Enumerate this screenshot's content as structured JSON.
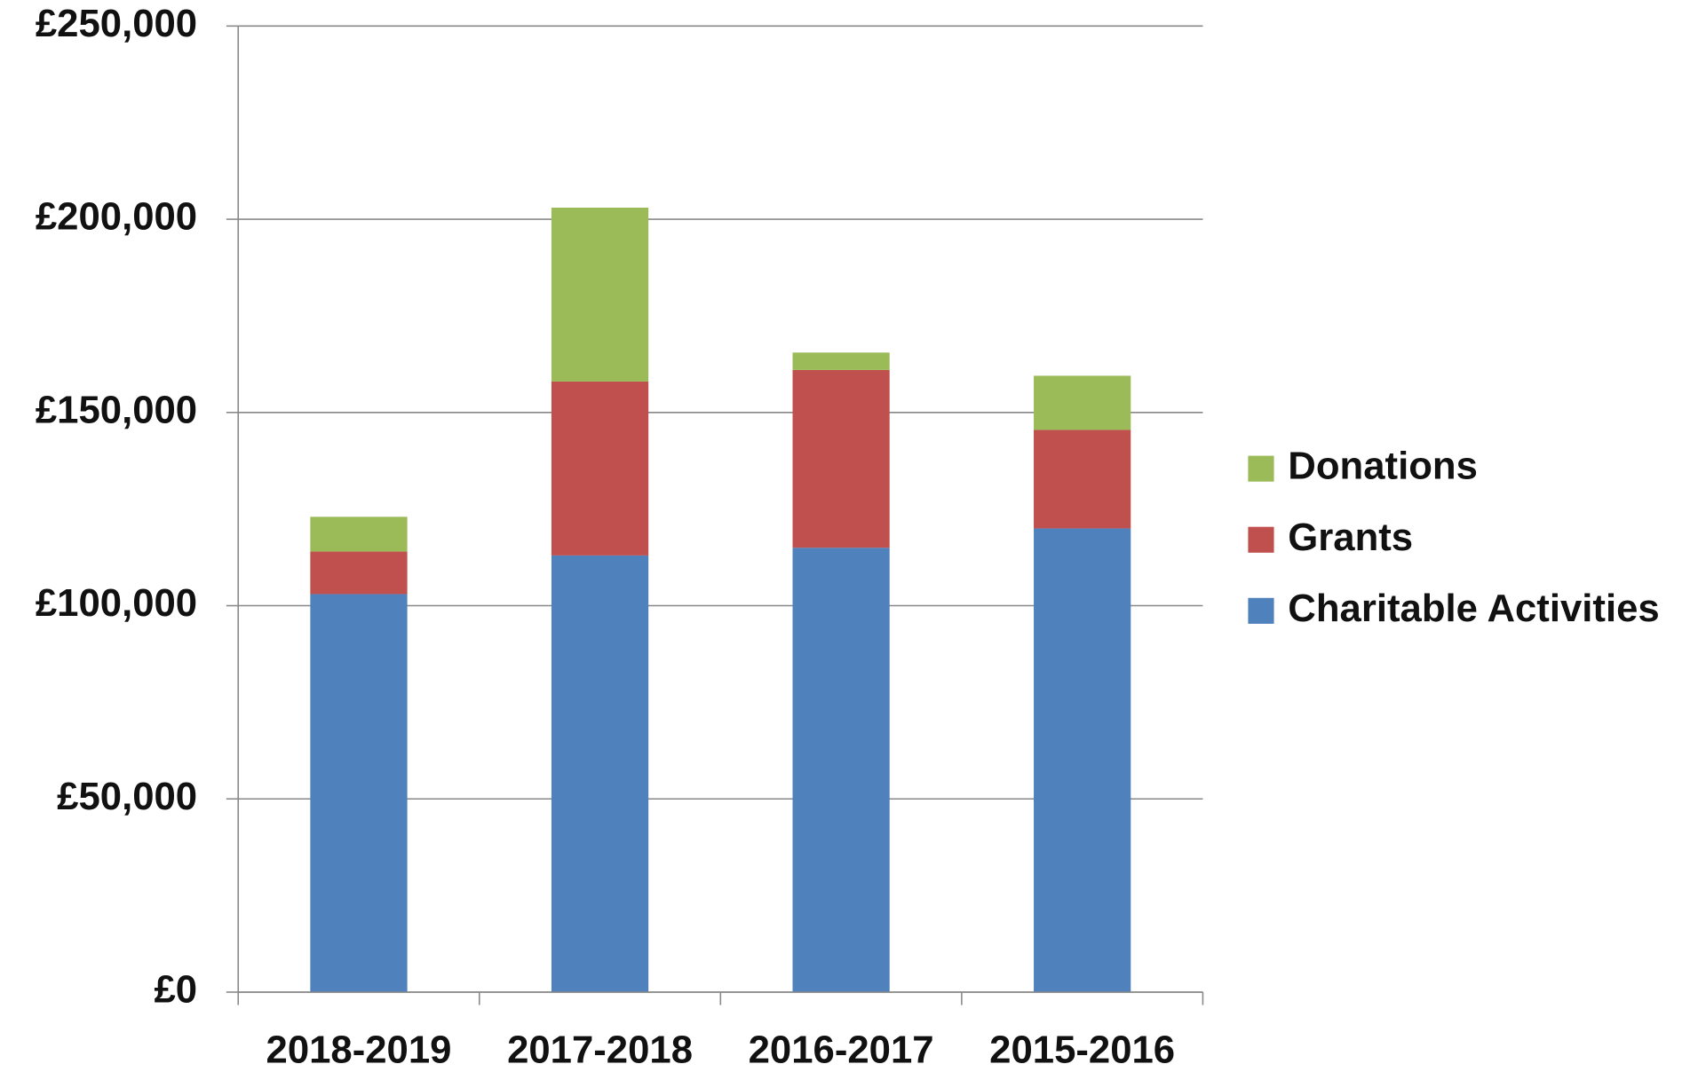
{
  "chart_data": {
    "type": "stacked_bar",
    "categories": [
      "2018-2019",
      "2017-2018",
      "2016-2017",
      "2015-2016"
    ],
    "series": [
      {
        "name": "Charitable Activities",
        "color": "#4f81bd",
        "values": [
          103000,
          113000,
          115000,
          120000
        ]
      },
      {
        "name": "Grants",
        "color": "#c0504d",
        "values": [
          11000,
          45000,
          46000,
          25500
        ]
      },
      {
        "name": "Donations",
        "color": "#9bbb59",
        "values": [
          9000,
          45000,
          4500,
          14000
        ]
      }
    ],
    "ylim": [
      0,
      250000
    ],
    "yticks": [
      {
        "value": 0,
        "label": "£0"
      },
      {
        "value": 50000,
        "label": "£50,000"
      },
      {
        "value": 100000,
        "label": "£100,000"
      },
      {
        "value": 150000,
        "label": "£150,000"
      },
      {
        "value": 200000,
        "label": "£200,000"
      },
      {
        "value": 250000,
        "label": "£250,000"
      }
    ],
    "grid": true,
    "legend": "right"
  }
}
